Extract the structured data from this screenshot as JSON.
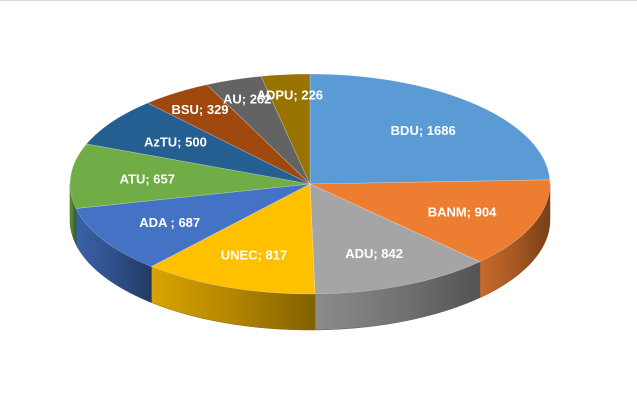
{
  "chart_data": {
    "type": "pie",
    "style": "3d",
    "title": "",
    "legend": "none",
    "slices": [
      {
        "label": "BDU; 1686",
        "name": "BDU",
        "value": 1686,
        "color": "#5b9bd5"
      },
      {
        "label": "BANM; 904",
        "name": "BANM",
        "value": 904,
        "color": "#ed7d31"
      },
      {
        "label": "ADU; 842",
        "name": "ADU",
        "value": 842,
        "color": "#a5a5a5"
      },
      {
        "label": "UNEC; 817",
        "name": "UNEC",
        "value": 817,
        "color": "#ffc000"
      },
      {
        "label": "ADA ; 687",
        "name": "ADA",
        "value": 687,
        "color": "#4472c4"
      },
      {
        "label": "ATU; 657",
        "name": "ATU",
        "value": 657,
        "color": "#70ad47"
      },
      {
        "label": "AzTU; 500",
        "name": "AzTU",
        "value": 500,
        "color": "#255e91"
      },
      {
        "label": "BSU; 329",
        "name": "BSU",
        "value": 329,
        "color": "#9e480e"
      },
      {
        "label": "AU; 262",
        "name": "AU",
        "value": 262,
        "color": "#636363"
      },
      {
        "label": "ADPU; 226",
        "name": "ADPU",
        "value": 226,
        "color": "#997300"
      }
    ]
  }
}
